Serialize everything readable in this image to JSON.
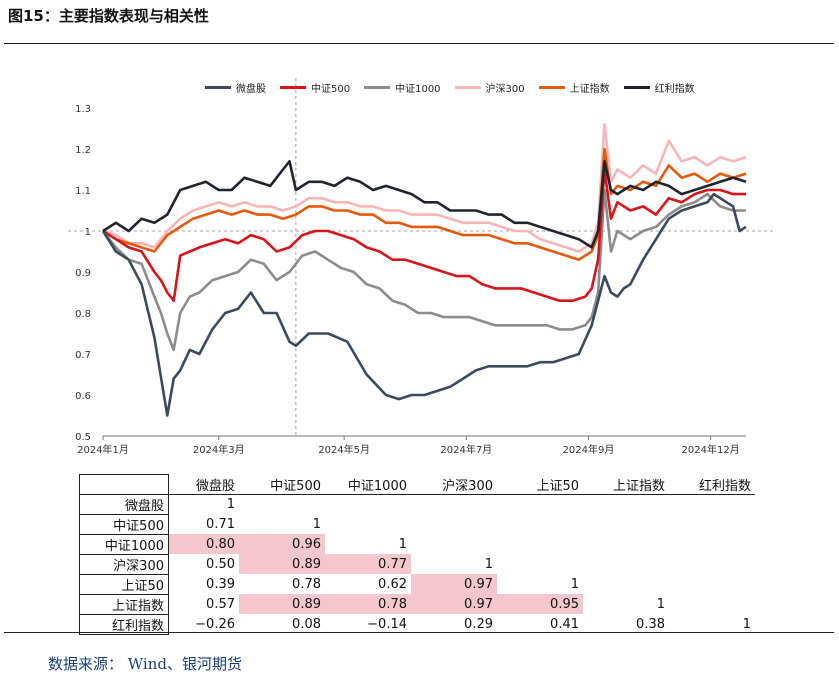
{
  "figure_title": "图15：主要指数表现与相关性",
  "source": "数据来源：  Wind、银河期货",
  "colors": {
    "微盘股": "#3b4a5c",
    "中证500": "#d7141b",
    "中证1000": "#8c8c8c",
    "沪深300": "#f7b5b8",
    "上证指数": "#e35a0c",
    "红利指数": "#1f2430",
    "highlight": "#f4c7cf"
  },
  "chart_data": {
    "type": "line",
    "title": "",
    "ylim": [
      0.5,
      1.3
    ],
    "yticks": [
      "0.5",
      "0.6",
      "0.7",
      "0.8",
      "0.9",
      "1",
      "1.1",
      "1.2",
      "1.3"
    ],
    "xlim": [
      0,
      1
    ],
    "xticks": [
      {
        "x": 0.0,
        "label": "2024年1月"
      },
      {
        "x": 0.18,
        "label": "2024年3月"
      },
      {
        "x": 0.375,
        "label": "2024年5月"
      },
      {
        "x": 0.565,
        "label": "2024年7月"
      },
      {
        "x": 0.755,
        "label": "2024年9月"
      },
      {
        "x": 0.945,
        "label": "2024年12月"
      }
    ],
    "reference_line": {
      "y": 1.0,
      "x_vertical": 0.3
    },
    "series": [
      {
        "name": "微盘股",
        "x": [
          0,
          0.02,
          0.04,
          0.06,
          0.08,
          0.1,
          0.11,
          0.12,
          0.135,
          0.15,
          0.17,
          0.19,
          0.21,
          0.23,
          0.25,
          0.27,
          0.29,
          0.3,
          0.32,
          0.35,
          0.38,
          0.41,
          0.44,
          0.46,
          0.48,
          0.5,
          0.52,
          0.54,
          0.56,
          0.58,
          0.6,
          0.62,
          0.64,
          0.66,
          0.68,
          0.7,
          0.72,
          0.74,
          0.76,
          0.77,
          0.78,
          0.79,
          0.8,
          0.81,
          0.82,
          0.84,
          0.86,
          0.88,
          0.9,
          0.92,
          0.94,
          0.95,
          0.96,
          0.97,
          0.98,
          0.99,
          1.0
        ],
        "values": [
          1.0,
          0.95,
          0.93,
          0.87,
          0.74,
          0.55,
          0.64,
          0.66,
          0.71,
          0.7,
          0.76,
          0.8,
          0.81,
          0.85,
          0.8,
          0.8,
          0.73,
          0.72,
          0.75,
          0.75,
          0.73,
          0.65,
          0.6,
          0.59,
          0.6,
          0.6,
          0.61,
          0.62,
          0.64,
          0.66,
          0.67,
          0.67,
          0.67,
          0.67,
          0.68,
          0.68,
          0.69,
          0.7,
          0.77,
          0.83,
          0.89,
          0.85,
          0.84,
          0.86,
          0.87,
          0.93,
          0.98,
          1.03,
          1.05,
          1.06,
          1.07,
          1.09,
          1.08,
          1.07,
          1.06,
          1.0,
          1.01
        ]
      },
      {
        "name": "中证500",
        "x": [
          0,
          0.02,
          0.04,
          0.06,
          0.08,
          0.09,
          0.1,
          0.11,
          0.12,
          0.135,
          0.15,
          0.17,
          0.19,
          0.21,
          0.23,
          0.25,
          0.27,
          0.29,
          0.31,
          0.33,
          0.35,
          0.37,
          0.39,
          0.41,
          0.43,
          0.45,
          0.47,
          0.49,
          0.51,
          0.53,
          0.55,
          0.57,
          0.59,
          0.61,
          0.63,
          0.65,
          0.67,
          0.69,
          0.71,
          0.73,
          0.75,
          0.76,
          0.77,
          0.78,
          0.79,
          0.8,
          0.82,
          0.84,
          0.86,
          0.88,
          0.9,
          0.92,
          0.94,
          0.96,
          0.98,
          1.0
        ],
        "values": [
          1.0,
          0.98,
          0.96,
          0.95,
          0.9,
          0.88,
          0.85,
          0.83,
          0.94,
          0.95,
          0.96,
          0.97,
          0.98,
          0.97,
          0.99,
          0.98,
          0.95,
          0.96,
          0.99,
          1.0,
          1.0,
          0.99,
          0.98,
          0.96,
          0.95,
          0.93,
          0.93,
          0.92,
          0.91,
          0.9,
          0.89,
          0.89,
          0.87,
          0.86,
          0.86,
          0.86,
          0.85,
          0.84,
          0.83,
          0.83,
          0.84,
          0.86,
          0.93,
          1.15,
          1.03,
          1.07,
          1.05,
          1.06,
          1.04,
          1.08,
          1.07,
          1.09,
          1.1,
          1.1,
          1.09,
          1.09
        ]
      },
      {
        "name": "中证1000",
        "x": [
          0,
          0.02,
          0.04,
          0.06,
          0.08,
          0.09,
          0.1,
          0.11,
          0.12,
          0.135,
          0.15,
          0.17,
          0.19,
          0.21,
          0.23,
          0.25,
          0.27,
          0.29,
          0.31,
          0.33,
          0.35,
          0.37,
          0.39,
          0.41,
          0.43,
          0.45,
          0.47,
          0.49,
          0.51,
          0.53,
          0.55,
          0.57,
          0.59,
          0.61,
          0.63,
          0.65,
          0.67,
          0.69,
          0.71,
          0.73,
          0.75,
          0.76,
          0.77,
          0.78,
          0.79,
          0.8,
          0.82,
          0.84,
          0.86,
          0.88,
          0.9,
          0.92,
          0.94,
          0.96,
          0.98,
          1.0
        ],
        "values": [
          1.0,
          0.96,
          0.93,
          0.92,
          0.84,
          0.8,
          0.75,
          0.71,
          0.8,
          0.84,
          0.85,
          0.88,
          0.89,
          0.9,
          0.93,
          0.92,
          0.88,
          0.9,
          0.94,
          0.95,
          0.93,
          0.91,
          0.9,
          0.87,
          0.86,
          0.83,
          0.82,
          0.8,
          0.8,
          0.79,
          0.79,
          0.79,
          0.78,
          0.77,
          0.77,
          0.77,
          0.77,
          0.77,
          0.76,
          0.76,
          0.77,
          0.79,
          0.85,
          1.1,
          0.95,
          1.0,
          0.98,
          1.0,
          1.01,
          1.04,
          1.06,
          1.07,
          1.09,
          1.06,
          1.05,
          1.05
        ]
      },
      {
        "name": "沪深300",
        "x": [
          0,
          0.02,
          0.04,
          0.06,
          0.08,
          0.1,
          0.12,
          0.14,
          0.16,
          0.18,
          0.2,
          0.22,
          0.24,
          0.26,
          0.28,
          0.3,
          0.32,
          0.34,
          0.36,
          0.38,
          0.4,
          0.42,
          0.44,
          0.46,
          0.48,
          0.5,
          0.52,
          0.54,
          0.56,
          0.58,
          0.6,
          0.62,
          0.64,
          0.66,
          0.68,
          0.7,
          0.72,
          0.74,
          0.76,
          0.77,
          0.78,
          0.79,
          0.8,
          0.82,
          0.84,
          0.86,
          0.88,
          0.9,
          0.92,
          0.94,
          0.96,
          0.98,
          1.0
        ],
        "values": [
          1.0,
          0.99,
          0.97,
          0.97,
          0.96,
          1.0,
          1.03,
          1.05,
          1.06,
          1.07,
          1.06,
          1.07,
          1.06,
          1.06,
          1.05,
          1.06,
          1.08,
          1.08,
          1.07,
          1.07,
          1.06,
          1.06,
          1.05,
          1.05,
          1.04,
          1.04,
          1.04,
          1.03,
          1.02,
          1.02,
          1.02,
          1.01,
          1.0,
          1.0,
          0.98,
          0.97,
          0.96,
          0.95,
          0.97,
          1.02,
          1.26,
          1.12,
          1.15,
          1.13,
          1.16,
          1.14,
          1.22,
          1.17,
          1.18,
          1.16,
          1.18,
          1.17,
          1.18
        ]
      },
      {
        "name": "上证指数",
        "x": [
          0,
          0.02,
          0.04,
          0.06,
          0.08,
          0.1,
          0.12,
          0.14,
          0.16,
          0.18,
          0.2,
          0.22,
          0.24,
          0.26,
          0.28,
          0.3,
          0.32,
          0.34,
          0.36,
          0.38,
          0.4,
          0.42,
          0.44,
          0.46,
          0.48,
          0.5,
          0.52,
          0.54,
          0.56,
          0.58,
          0.6,
          0.62,
          0.64,
          0.66,
          0.68,
          0.7,
          0.72,
          0.74,
          0.76,
          0.77,
          0.78,
          0.79,
          0.8,
          0.82,
          0.84,
          0.86,
          0.88,
          0.9,
          0.92,
          0.94,
          0.96,
          0.98,
          1.0
        ],
        "values": [
          1.0,
          0.98,
          0.97,
          0.96,
          0.95,
          0.99,
          1.01,
          1.03,
          1.04,
          1.05,
          1.04,
          1.05,
          1.04,
          1.04,
          1.03,
          1.04,
          1.06,
          1.06,
          1.05,
          1.05,
          1.04,
          1.04,
          1.02,
          1.02,
          1.01,
          1.01,
          1.01,
          1.0,
          0.99,
          0.99,
          0.99,
          0.98,
          0.97,
          0.97,
          0.96,
          0.95,
          0.94,
          0.93,
          0.95,
          0.99,
          1.2,
          1.09,
          1.11,
          1.1,
          1.12,
          1.11,
          1.16,
          1.13,
          1.14,
          1.12,
          1.14,
          1.13,
          1.14
        ]
      },
      {
        "name": "红利指数",
        "x": [
          0,
          0.02,
          0.04,
          0.06,
          0.08,
          0.1,
          0.12,
          0.14,
          0.16,
          0.18,
          0.2,
          0.22,
          0.24,
          0.26,
          0.28,
          0.29,
          0.3,
          0.32,
          0.34,
          0.36,
          0.38,
          0.4,
          0.42,
          0.44,
          0.46,
          0.48,
          0.5,
          0.52,
          0.54,
          0.56,
          0.58,
          0.6,
          0.62,
          0.64,
          0.66,
          0.68,
          0.7,
          0.72,
          0.74,
          0.76,
          0.77,
          0.78,
          0.79,
          0.8,
          0.82,
          0.84,
          0.86,
          0.88,
          0.9,
          0.92,
          0.94,
          0.96,
          0.98,
          1.0
        ],
        "values": [
          1.0,
          1.02,
          1.0,
          1.03,
          1.02,
          1.04,
          1.1,
          1.11,
          1.12,
          1.1,
          1.1,
          1.13,
          1.12,
          1.11,
          1.15,
          1.17,
          1.1,
          1.12,
          1.12,
          1.11,
          1.13,
          1.12,
          1.1,
          1.11,
          1.1,
          1.09,
          1.07,
          1.07,
          1.05,
          1.05,
          1.05,
          1.04,
          1.04,
          1.02,
          1.02,
          1.01,
          1.0,
          0.99,
          0.98,
          0.96,
          1.0,
          1.17,
          1.1,
          1.09,
          1.11,
          1.1,
          1.12,
          1.11,
          1.09,
          1.1,
          1.11,
          1.12,
          1.13,
          1.12
        ]
      }
    ]
  },
  "table": {
    "headers": [
      "微盘股",
      "中证500",
      "中证1000",
      "沪深300",
      "上证50",
      "上证指数",
      "红利指数"
    ],
    "rows": [
      {
        "label": "微盘股",
        "values": [
          "1",
          "",
          "",
          "",
          "",
          "",
          ""
        ]
      },
      {
        "label": "中证500",
        "values": [
          "0.71",
          "1",
          "",
          "",
          "",
          "",
          ""
        ]
      },
      {
        "label": "中证1000",
        "values": [
          "0.80",
          "0.96",
          "1",
          "",
          "",
          "",
          ""
        ]
      },
      {
        "label": "沪深300",
        "values": [
          "0.50",
          "0.89",
          "0.77",
          "1",
          "",
          "",
          ""
        ]
      },
      {
        "label": "上证50",
        "values": [
          "0.39",
          "0.78",
          "0.62",
          "0.97",
          "1",
          "",
          ""
        ]
      },
      {
        "label": "上证指数",
        "values": [
          "0.57",
          "0.89",
          "0.78",
          "0.97",
          "0.95",
          "1",
          ""
        ]
      },
      {
        "label": "红利指数",
        "values": [
          "−0.26",
          "0.08",
          "−0.14",
          "0.29",
          "0.41",
          "0.38",
          "1"
        ]
      }
    ],
    "highlighted": [
      [
        2,
        0
      ],
      [
        2,
        1
      ],
      [
        3,
        1
      ],
      [
        3,
        2
      ],
      [
        4,
        3
      ],
      [
        5,
        1
      ],
      [
        5,
        2
      ],
      [
        5,
        3
      ],
      [
        5,
        4
      ]
    ]
  }
}
